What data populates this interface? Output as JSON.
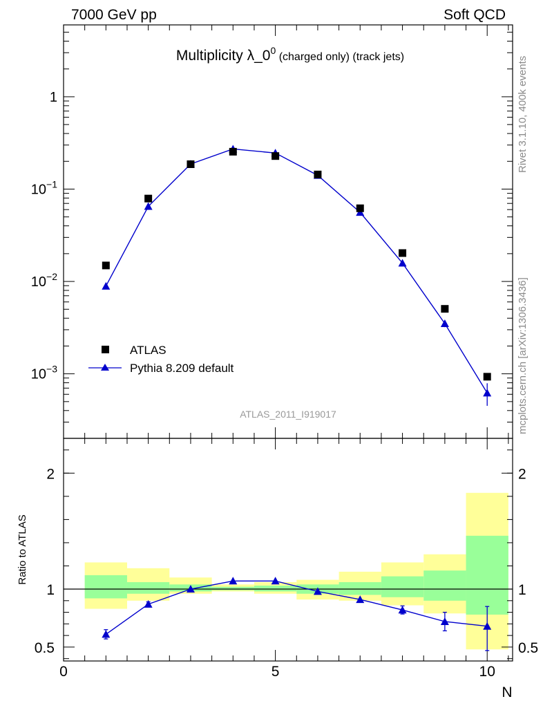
{
  "header": {
    "left": "7000 GeV pp",
    "right": "Soft QCD"
  },
  "side_text": {
    "rivet": "Rivet 3.1.10,  400k events",
    "mcplots": "mcplots.cern.ch [arXiv:1306.3436]"
  },
  "watermark": "ATLAS_2011_I919017",
  "colors": {
    "data": "#000000",
    "mc": "#0000cc",
    "band_inner": "#99ff99",
    "band_outer": "#ffff99"
  },
  "chart_data": [
    {
      "type": "scatter",
      "panel": "main",
      "title_main": "Multiplicity λ_0",
      "title_sup": "0",
      "title_rest": " (charged only) (track jets)",
      "xlabel": "N",
      "ylabel": "",
      "yscale": "log",
      "xlim": [
        0,
        10.6
      ],
      "ylim": [
        0.0002,
        6
      ],
      "yticks": [
        {
          "value": 1,
          "label": "1"
        },
        {
          "value": 0.1,
          "label": "10",
          "sup": "−1"
        },
        {
          "value": 0.01,
          "label": "10",
          "sup": "−2"
        },
        {
          "value": 0.001,
          "label": "10",
          "sup": "−3"
        }
      ],
      "legend": {
        "placement": "bottom-left",
        "atlas": "ATLAS",
        "mc": "Pythia 8.209 default"
      },
      "series": [
        {
          "name": "ATLAS",
          "marker": "square",
          "x": [
            1,
            2,
            3,
            4,
            5,
            6,
            7,
            8,
            9,
            10
          ],
          "y": [
            0.0149,
            0.079,
            0.186,
            0.254,
            0.228,
            0.144,
            0.062,
            0.0203,
            0.00505,
            0.00093
          ]
        },
        {
          "name": "Pythia 8.209 default",
          "marker": "triangle",
          "x": [
            1,
            2,
            3,
            4,
            5,
            6,
            7,
            8,
            9,
            10
          ],
          "y": [
            0.0089,
            0.065,
            0.187,
            0.272,
            0.246,
            0.141,
            0.056,
            0.0158,
            0.0035,
            0.00062
          ],
          "err_low": [
            0.0002,
            0.001,
            0.002,
            0.002,
            0.002,
            0.002,
            0.001,
            0.0006,
            0.0003,
            0.00017
          ],
          "err_high": [
            0.0002,
            0.001,
            0.002,
            0.002,
            0.002,
            0.002,
            0.001,
            0.0006,
            0.0003,
            0.00017
          ]
        }
      ]
    },
    {
      "type": "line",
      "panel": "ratio",
      "xlabel": "N",
      "ylabel": "Ratio to ATLAS",
      "xlim": [
        0,
        10.6
      ],
      "ylim": [
        0.38,
        2.3
      ],
      "xticks": [
        {
          "value": 0,
          "label": "0"
        },
        {
          "value": 5,
          "label": "5"
        },
        {
          "value": 10,
          "label": "10"
        }
      ],
      "yticks": [
        {
          "value": 2,
          "label": "2"
        },
        {
          "value": 1,
          "label": "1"
        },
        {
          "value": 0.5,
          "label": "0.5"
        }
      ],
      "bands": [
        {
          "x0": 0.5,
          "x1": 1.5,
          "inner": [
            0.92,
            1.12
          ],
          "outer": [
            0.83,
            1.23
          ]
        },
        {
          "x0": 1.5,
          "x1": 2.5,
          "inner": [
            0.96,
            1.06
          ],
          "outer": [
            0.9,
            1.18
          ]
        },
        {
          "x0": 2.5,
          "x1": 3.5,
          "inner": [
            0.98,
            1.04
          ],
          "outer": [
            0.96,
            1.1
          ]
        },
        {
          "x0": 3.5,
          "x1": 4.5,
          "inner": [
            0.99,
            1.02
          ],
          "outer": [
            0.98,
            1.04
          ]
        },
        {
          "x0": 4.5,
          "x1": 5.5,
          "inner": [
            0.98,
            1.03
          ],
          "outer": [
            0.96,
            1.06
          ]
        },
        {
          "x0": 5.5,
          "x1": 6.5,
          "inner": [
            0.96,
            1.04
          ],
          "outer": [
            0.91,
            1.08
          ]
        },
        {
          "x0": 6.5,
          "x1": 7.5,
          "inner": [
            0.95,
            1.06
          ],
          "outer": [
            0.9,
            1.15
          ]
        },
        {
          "x0": 7.5,
          "x1": 8.5,
          "inner": [
            0.93,
            1.11
          ],
          "outer": [
            0.86,
            1.23
          ]
        },
        {
          "x0": 8.5,
          "x1": 9.5,
          "inner": [
            0.9,
            1.16
          ],
          "outer": [
            0.79,
            1.3
          ]
        },
        {
          "x0": 9.5,
          "x1": 10.5,
          "inner": [
            0.78,
            1.46
          ],
          "outer": [
            0.48,
            1.83
          ]
        }
      ],
      "series": [
        {
          "name": "Pythia 8.209 default",
          "x": [
            1,
            2,
            3,
            4,
            5,
            6,
            7,
            8,
            9,
            10
          ],
          "y": [
            0.61,
            0.87,
            1.0,
            1.07,
            1.07,
            0.98,
            0.91,
            0.82,
            0.72,
            0.68
          ],
          "err_low": [
            0.04,
            0.02,
            0.01,
            0.01,
            0.01,
            0.01,
            0.015,
            0.035,
            0.08,
            0.21
          ],
          "err_high": [
            0.04,
            0.02,
            0.01,
            0.01,
            0.01,
            0.01,
            0.015,
            0.035,
            0.08,
            0.17
          ]
        }
      ]
    }
  ]
}
